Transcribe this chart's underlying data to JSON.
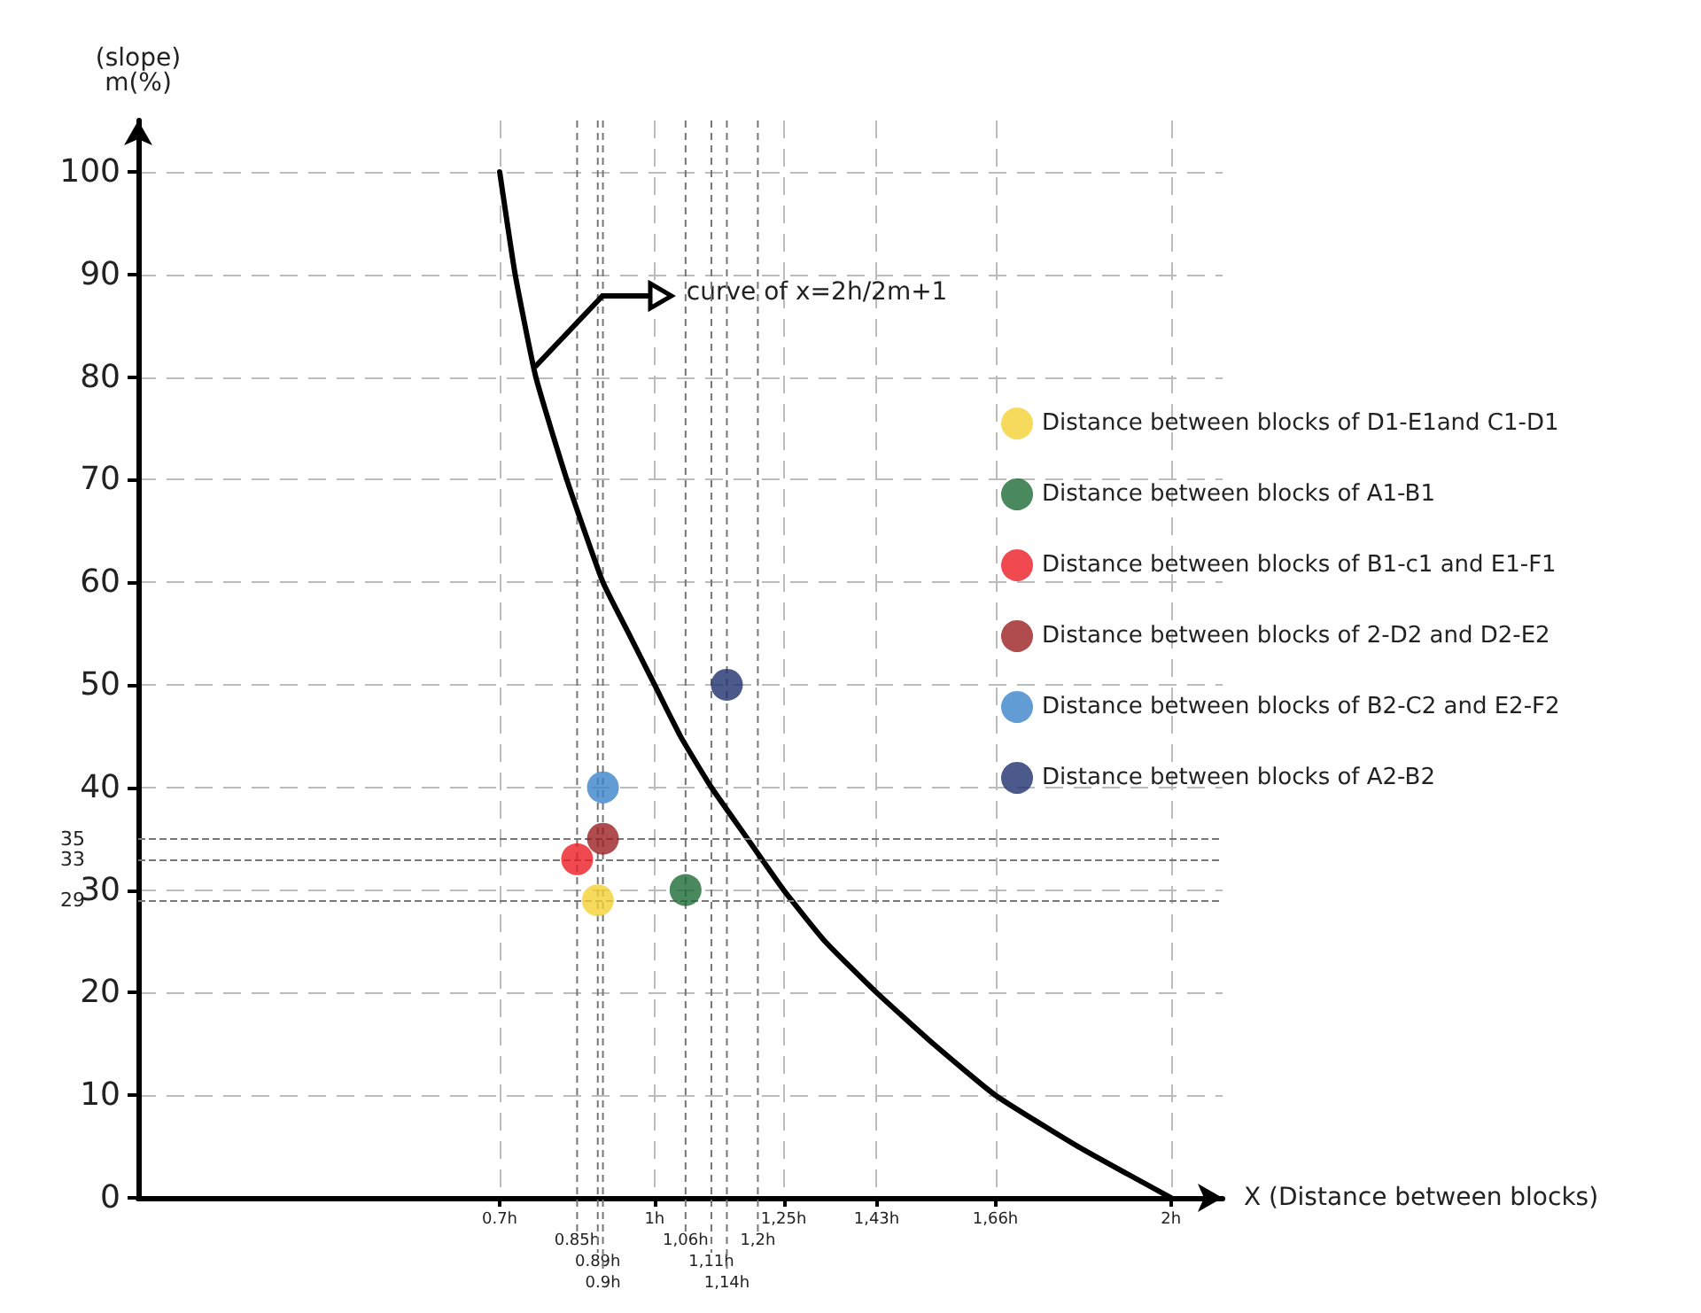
{
  "chart_data": {
    "type": "scatter",
    "xlabel": "X (Distance between blocks)",
    "ylabel": "(slope)\nm(%)",
    "xlim": [
      0,
      2.1
    ],
    "xticks": [
      {
        "value": 0.7,
        "label": "0.7h"
      },
      {
        "value": 1,
        "label": "1h"
      },
      {
        "value": 1.25,
        "label": "1,25h"
      },
      {
        "value": 1.43,
        "label": "1,43h"
      },
      {
        "value": 1.66,
        "label": "1,66h"
      },
      {
        "value": 2,
        "label": "2h"
      }
    ],
    "ylim": [
      0,
      105
    ],
    "yticks": [
      0,
      10,
      20,
      30,
      40,
      50,
      60,
      70,
      80,
      90,
      100
    ],
    "ref_lines": [
      {
        "axis": "x",
        "value": 0.85,
        "label": "0.85h"
      },
      {
        "axis": "x",
        "value": 0.89,
        "label": "0.89h"
      },
      {
        "axis": "x",
        "value": 0.9,
        "label": "0.9h"
      },
      {
        "axis": "x",
        "value": 1.06,
        "label": "1,06h"
      },
      {
        "axis": "x",
        "value": 1.11,
        "label": "1,11h"
      },
      {
        "axis": "x",
        "value": 1.14,
        "label": "1,14h"
      },
      {
        "axis": "x",
        "value": 1.2,
        "label": "1,2h"
      },
      {
        "axis": "y",
        "value": 29,
        "label": "29"
      },
      {
        "axis": "y",
        "value": 33,
        "label": "33"
      },
      {
        "axis": "y",
        "value": 35,
        "label": "35"
      }
    ],
    "grid": true,
    "legend": "right",
    "marker": "circle",
    "series": [
      {
        "type": "line",
        "marker": "none",
        "color": "#000000",
        "x": [
          0.7,
          0.73,
          0.77,
          0.83,
          0.9,
          0.95,
          1,
          1.05,
          1.11,
          1.18,
          1.25,
          1.33,
          1.43,
          1.54,
          1.66,
          1.82,
          2
        ],
        "values": [
          100,
          90,
          80,
          70,
          60,
          55,
          50,
          45,
          40,
          35,
          30,
          25,
          20,
          15,
          10,
          5,
          0
        ]
      },
      {
        "name": "Distance between blocks of D1-E1and C1-D1",
        "color": "#f2d133",
        "x": [
          0.89
        ],
        "values": [
          29
        ]
      },
      {
        "name": "Distance between blocks of A1-B1",
        "color": "#1d6b35",
        "x": [
          1.06
        ],
        "values": [
          30
        ]
      },
      {
        "name": "Distance between blocks of B1-c1 and E1-F1",
        "color": "#ec1c24",
        "x": [
          0.85
        ],
        "values": [
          33
        ]
      },
      {
        "name": "Distance between blocks of 2-D2 and D2-E2",
        "color": "#9a1f22",
        "x": [
          0.9
        ],
        "values": [
          35
        ]
      },
      {
        "name": "Distance between blocks of B2-C2 and E2-F2",
        "color": "#3a84c9",
        "x": [
          0.9
        ],
        "values": [
          40
        ]
      },
      {
        "name": "Distance between blocks of A2-B2",
        "color": "#1f2f6e",
        "x": [
          1.14
        ],
        "values": [
          50
        ]
      }
    ],
    "annotations": [
      {
        "text": "curve of x=2h/2m+1",
        "x": 0.77,
        "y": 81
      }
    ]
  }
}
